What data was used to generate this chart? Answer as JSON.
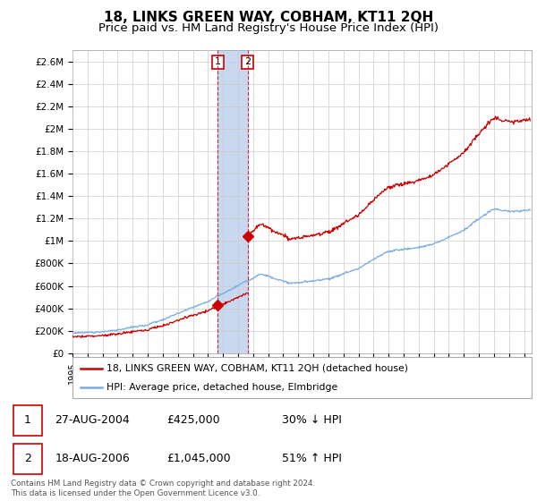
{
  "title": "18, LINKS GREEN WAY, COBHAM, KT11 2QH",
  "subtitle": "Price paid vs. HM Land Registry's House Price Index (HPI)",
  "ylabel_ticks": [
    "£0",
    "£200K",
    "£400K",
    "£600K",
    "£800K",
    "£1M",
    "£1.2M",
    "£1.4M",
    "£1.6M",
    "£1.8M",
    "£2M",
    "£2.2M",
    "£2.4M",
    "£2.6M"
  ],
  "ytick_vals": [
    0,
    200000,
    400000,
    600000,
    800000,
    1000000,
    1200000,
    1400000,
    1600000,
    1800000,
    2000000,
    2200000,
    2400000,
    2600000
  ],
  "ylim": [
    0,
    2700000
  ],
  "xlim_start": 1995.0,
  "xlim_end": 2025.5,
  "sale1_x": 2004.65,
  "sale1_y": 425000,
  "sale2_x": 2006.63,
  "sale2_y": 1045000,
  "sale_color": "#cc0000",
  "hpi_color": "#7aadde",
  "span_color": "#c8d8f0",
  "grid_color": "#cccccc",
  "legend_line1": "18, LINKS GREEN WAY, COBHAM, KT11 2QH (detached house)",
  "legend_line2": "HPI: Average price, detached house, Elmbridge",
  "table_row1": [
    "1",
    "27-AUG-2004",
    "£425,000",
    "30% ↓ HPI"
  ],
  "table_row2": [
    "2",
    "18-AUG-2006",
    "£1,045,000",
    "51% ↑ HPI"
  ],
  "footnote": "Contains HM Land Registry data © Crown copyright and database right 2024.\nThis data is licensed under the Open Government Licence v3.0.",
  "title_fontsize": 11,
  "subtitle_fontsize": 9.5
}
